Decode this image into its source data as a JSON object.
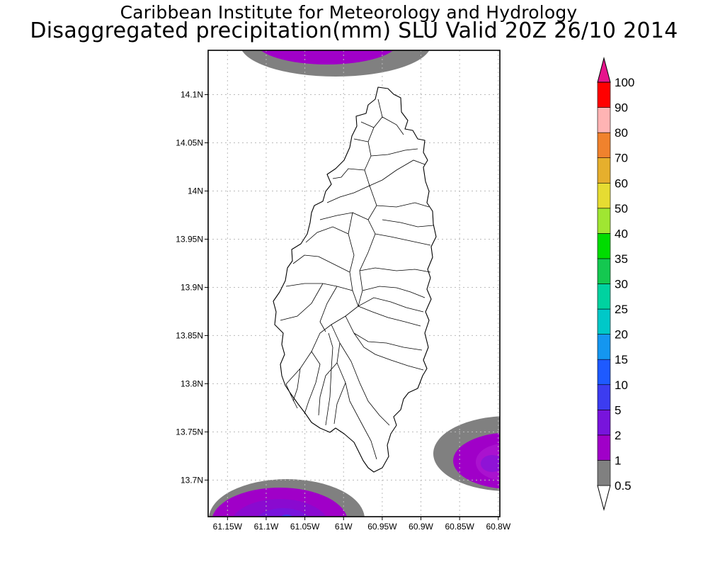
{
  "title_line1": "Caribbean Institute for Meteorology and Hydrology",
  "title_line2": "Disaggregated precipitation(mm) SLU Valid 20Z 26/10 2014",
  "lat_ticks": [
    {
      "value": 14.1,
      "label": "14.1N"
    },
    {
      "value": 14.05,
      "label": "14.05N"
    },
    {
      "value": 14.0,
      "label": "14N"
    },
    {
      "value": 13.95,
      "label": "13.95N"
    },
    {
      "value": 13.9,
      "label": "13.9N"
    },
    {
      "value": 13.85,
      "label": "13.85N"
    },
    {
      "value": 13.8,
      "label": "13.8N"
    },
    {
      "value": 13.75,
      "label": "13.75N"
    },
    {
      "value": 13.7,
      "label": "13.7N"
    }
  ],
  "lon_ticks": [
    {
      "value": -61.15,
      "label": "61.15W"
    },
    {
      "value": -61.1,
      "label": "61.1W"
    },
    {
      "value": -61.05,
      "label": "61.05W"
    },
    {
      "value": -61.0,
      "label": "61W"
    },
    {
      "value": -60.95,
      "label": "60.95W"
    },
    {
      "value": -60.9,
      "label": "60.9W"
    },
    {
      "value": -60.85,
      "label": "60.85W"
    },
    {
      "value": -60.8,
      "label": "60.8W"
    }
  ],
  "map_extent": {
    "lon_min": -61.175,
    "lon_max": -60.798,
    "lat_min": 13.662,
    "lat_max": 14.146
  },
  "colorbar": {
    "units": "mm",
    "levels": [
      "0.5",
      "1",
      "2",
      "5",
      "10",
      "15",
      "20",
      "25",
      "30",
      "35",
      "40",
      "50",
      "60",
      "70",
      "80",
      "90",
      "100"
    ],
    "colors": [
      "#ffffff",
      "#808080",
      "#a000c8",
      "#7814dc",
      "#3c3cf0",
      "#1e5aff",
      "#1496f0",
      "#00c8c8",
      "#00d2a0",
      "#14c850",
      "#00dc00",
      "#a0e632",
      "#e6dc32",
      "#e6af2d",
      "#f0822d",
      "#ffb4b4",
      "#ff0000",
      "#ff3c3c",
      "#e6148c"
    ]
  },
  "precip_areas": [
    {
      "name": "north-offshore-cell",
      "max_category": "2-5",
      "center_lon": -61.02,
      "center_lat": 14.145
    },
    {
      "name": "southeast-offshore-cell",
      "max_category": "2-5",
      "center_lon": -60.805,
      "center_lat": 13.72
    },
    {
      "name": "southwest-offshore-cell",
      "max_category": "5-10",
      "center_lon": -61.06,
      "center_lat": 13.662
    }
  ],
  "island": {
    "name": "Saint Lucia",
    "outline": "black",
    "fill": "white"
  }
}
